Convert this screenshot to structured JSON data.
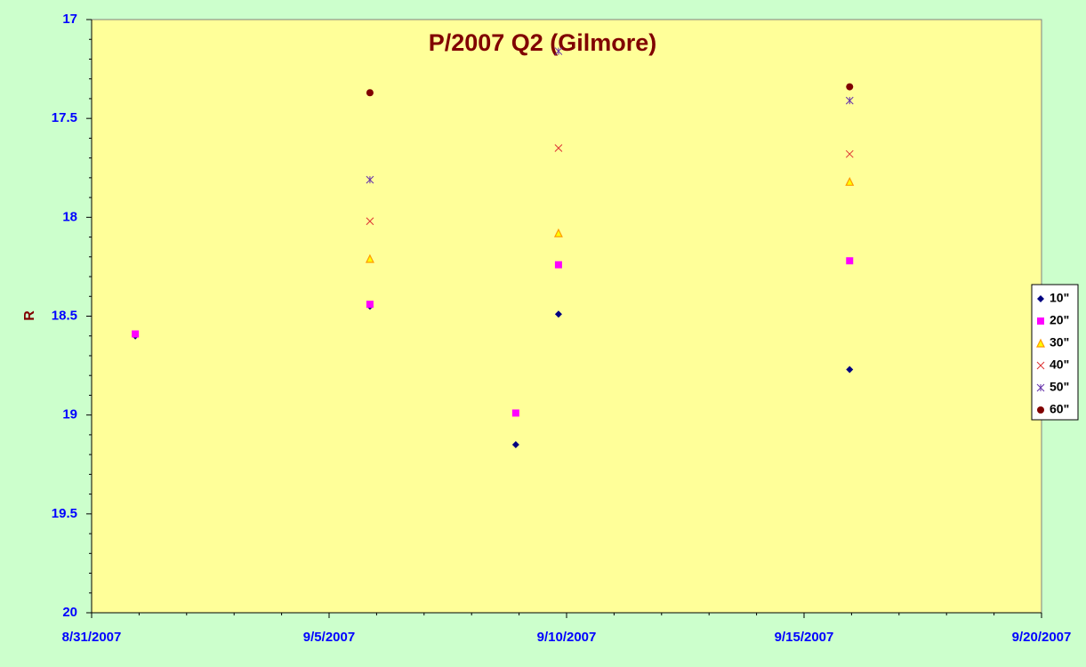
{
  "chart_data": {
    "type": "scatter",
    "title": "P/2007 Q2 (Gilmore)",
    "y_label": "R",
    "x": [
      39325.92,
      39330.86,
      39333.93,
      39334.83,
      39340.96
    ],
    "xlim": [
      39325,
      39345
    ],
    "xticks": [
      {
        "value": 39325,
        "label": "8/31/2007"
      },
      {
        "value": 39330,
        "label": "9/5/2007"
      },
      {
        "value": 39335,
        "label": "9/10/2007"
      },
      {
        "value": 39340,
        "label": "9/15/2007"
      },
      {
        "value": 39345,
        "label": "9/20/2007"
      }
    ],
    "ylim": [
      17,
      20
    ],
    "y_inverted": true,
    "yticks": [
      17,
      17.5,
      18,
      18.5,
      19,
      19.5,
      20
    ],
    "legend": "right",
    "series": [
      {
        "name": "10\"",
        "color": "#000080",
        "marker": "diamond",
        "values": [
          18.6,
          18.45,
          19.15,
          18.49,
          18.77
        ]
      },
      {
        "name": "20\"",
        "color": "#ff00ff",
        "marker": "square",
        "values": [
          18.59,
          18.44,
          18.99,
          18.24,
          18.22
        ]
      },
      {
        "name": "30\"",
        "color": "#ff9900",
        "marker": "triangle",
        "values": [
          null,
          18.21,
          null,
          18.08,
          17.82
        ]
      },
      {
        "name": "40\"",
        "color": "#dd3333",
        "marker": "x",
        "values": [
          null,
          18.02,
          null,
          17.65,
          17.68
        ]
      },
      {
        "name": "50\"",
        "color": "#6633aa",
        "marker": "star",
        "values": [
          null,
          17.81,
          null,
          17.16,
          17.41
        ]
      },
      {
        "name": "60\"",
        "color": "#800000",
        "marker": "circle",
        "values": [
          null,
          17.37,
          null,
          null,
          17.34
        ]
      }
    ]
  }
}
